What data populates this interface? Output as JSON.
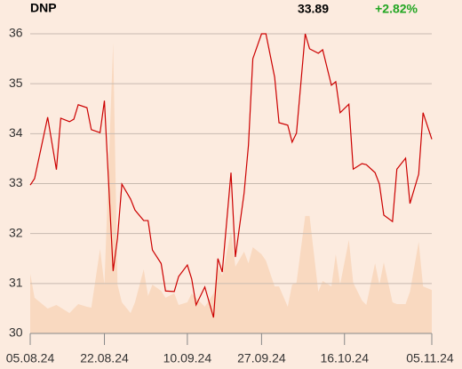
{
  "chart_data": {
    "type": "line",
    "title": "DNP",
    "price": "33.89",
    "change": "+2.82%",
    "change_color": "#22a622",
    "x": [
      "2024-08-05",
      "2024-08-06",
      "2024-08-09",
      "2024-08-11",
      "2024-08-12",
      "2024-08-14",
      "2024-08-15",
      "2024-08-16",
      "2024-08-18",
      "2024-08-19",
      "2024-08-21",
      "2024-08-22",
      "2024-08-24",
      "2024-08-25",
      "2024-08-26",
      "2024-08-28",
      "2024-08-29",
      "2024-08-31",
      "2024-09-01",
      "2024-09-02",
      "2024-09-04",
      "2024-09-05",
      "2024-09-07",
      "2024-09-08",
      "2024-09-10",
      "2024-09-11",
      "2024-09-12",
      "2024-09-14",
      "2024-09-16",
      "2024-09-17",
      "2024-09-18",
      "2024-09-20",
      "2024-09-21",
      "2024-09-23",
      "2024-09-24",
      "2024-09-25",
      "2024-09-27",
      "2024-09-28",
      "2024-09-30",
      "2024-10-01",
      "2024-10-03",
      "2024-10-04",
      "2024-10-05",
      "2024-10-07",
      "2024-10-08",
      "2024-10-10",
      "2024-10-11",
      "2024-10-13",
      "2024-10-14",
      "2024-10-15",
      "2024-10-17",
      "2024-10-18",
      "2024-10-20",
      "2024-10-21",
      "2024-10-23",
      "2024-10-24",
      "2024-10-25",
      "2024-10-27",
      "2024-10-28",
      "2024-10-30",
      "2024-10-31",
      "2024-11-02",
      "2024-11-03",
      "2024-11-05"
    ],
    "series": [
      {
        "color": "#cc0000",
        "values": [
          32.97,
          33.1,
          34.33,
          33.28,
          34.31,
          34.24,
          34.29,
          34.58,
          34.52,
          34.08,
          34.02,
          34.66,
          31.25,
          31.91,
          32.99,
          32.69,
          32.47,
          32.26,
          32.26,
          31.67,
          31.4,
          30.85,
          30.84,
          31.14,
          31.37,
          31.09,
          30.57,
          30.93,
          30.32,
          31.5,
          31.23,
          33.22,
          31.53,
          32.81,
          33.77,
          35.5,
          36.0,
          36.0,
          35.13,
          34.22,
          34.17,
          33.83,
          34.01,
          36.0,
          35.7,
          35.61,
          35.68,
          34.97,
          35.04,
          34.42,
          34.59,
          33.29,
          33.4,
          33.38,
          33.22,
          32.99,
          32.37,
          32.24,
          33.29,
          33.51,
          32.6,
          33.19,
          34.42,
          33.89
        ]
      },
      {
        "type": "area",
        "axis": "y2",
        "color": "#f9d9c0",
        "values": [
          19.9,
          11.9,
          8.3,
          9.5,
          8.6,
          6.8,
          8.3,
          9.8,
          8.9,
          8.6,
          28.2,
          16.3,
          97,
          16.3,
          10.4,
          6.8,
          10.4,
          21.4,
          12.5,
          16.3,
          14.2,
          11.9,
          13.4,
          9.5,
          10.4,
          13.4,
          11.9,
          8.9,
          13.4,
          22.3,
          19.3,
          34.1,
          22.3,
          27.3,
          23.4,
          28.8,
          26.4,
          24.3,
          15.7,
          15.7,
          8.9,
          16.3,
          16.9,
          39.2,
          39.2,
          13.9,
          17.5,
          15.7,
          26.4,
          16.3,
          31.2,
          16.9,
          11.0,
          9.5,
          23.4,
          16.3,
          23.7,
          10.4,
          9.8,
          9.8,
          13.9,
          30.6,
          15.7,
          14.5
        ]
      }
    ],
    "xlim": [
      "2024-08-05",
      "2024-11-05"
    ],
    "xticks": [
      {
        "value": "2024-08-05",
        "label": "05.08.24"
      },
      {
        "value": "2024-08-22",
        "label": "22.08.24"
      },
      {
        "value": "2024-09-10",
        "label": "10.09.24"
      },
      {
        "value": "2024-09-27",
        "label": "27.09.24"
      },
      {
        "value": "2024-10-16",
        "label": "16.10.24"
      },
      {
        "value": "2024-11-05",
        "label": "05.11.24"
      }
    ],
    "ylim": [
      30,
      36
    ],
    "yticks": [
      30,
      31,
      32,
      33,
      34,
      35,
      36
    ],
    "y2lim": [
      0,
      100
    ],
    "grid": true
  }
}
